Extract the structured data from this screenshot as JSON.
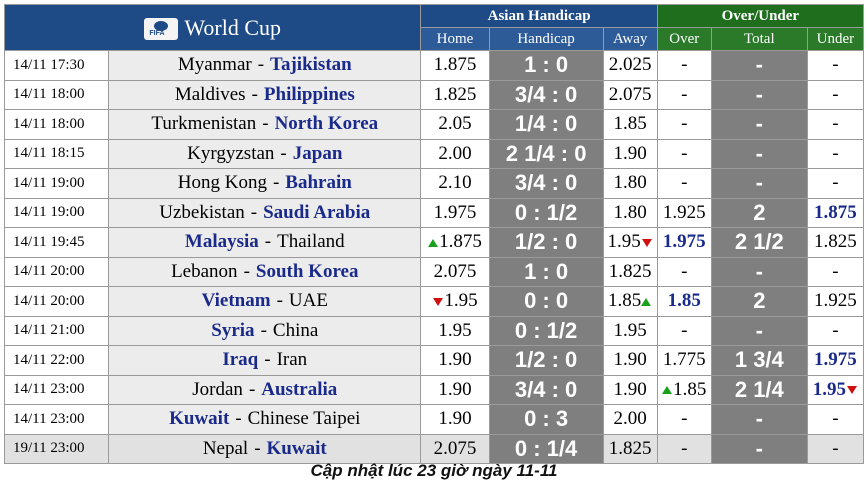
{
  "header": {
    "title": "World Cup",
    "asian_handicap": "Asian Handicap",
    "over_under": "Over/Under",
    "cols": {
      "home": "Home",
      "handicap": "Handicap",
      "away": "Away",
      "over": "Over",
      "total": "Total",
      "under": "Under"
    }
  },
  "colors": {
    "header_blue": "#1e4a85",
    "header_green": "#1e6e1e",
    "handicap_gray": "#7f7f7f",
    "favorite_team": "#1a2a8a",
    "arrow_up": "#1aa01a",
    "arrow_down": "#d01010"
  },
  "rows": [
    {
      "time": "14/11 17:30",
      "home": "Myanmar",
      "away": "Tajikistan",
      "fav": "away",
      "h": "1.875",
      "hc": "1 : 0",
      "a": "2.025",
      "over": "-",
      "total": "-",
      "under": "-"
    },
    {
      "time": "14/11 18:00",
      "home": "Maldives",
      "away": "Philippines",
      "fav": "away",
      "h": "1.825",
      "hc": "3/4 : 0",
      "a": "2.075",
      "over": "-",
      "total": "-",
      "under": "-"
    },
    {
      "time": "14/11 18:00",
      "home": "Turkmenistan",
      "away": "North Korea",
      "fav": "away",
      "h": "2.05",
      "hc": "1/4 : 0",
      "a": "1.85",
      "over": "-",
      "total": "-",
      "under": "-"
    },
    {
      "time": "14/11 18:15",
      "home": "Kyrgyzstan",
      "away": "Japan",
      "fav": "away",
      "h": "2.00",
      "hc": "2 1/4 : 0",
      "a": "1.90",
      "over": "-",
      "total": "-",
      "under": "-"
    },
    {
      "time": "14/11 19:00",
      "home": "Hong Kong",
      "away": "Bahrain",
      "fav": "away",
      "h": "2.10",
      "hc": "3/4 : 0",
      "a": "1.80",
      "over": "-",
      "total": "-",
      "under": "-"
    },
    {
      "time": "14/11 19:00",
      "home": "Uzbekistan",
      "away": "Saudi Arabia",
      "fav": "away",
      "h": "1.975",
      "hc": "0 : 1/2",
      "a": "1.80",
      "over": "1.925",
      "total": "2",
      "under": "1.875"
    },
    {
      "time": "14/11 19:45",
      "home": "Malaysia",
      "away": "Thailand",
      "fav": "home",
      "h": "1.875",
      "hc": "1/2 : 0",
      "a": "1.95",
      "over": "1.975",
      "total": "2 1/2",
      "under": "1.825"
    },
    {
      "time": "14/11 20:00",
      "home": "Lebanon",
      "away": "South Korea",
      "fav": "away",
      "h": "2.075",
      "hc": "1 : 0",
      "a": "1.825",
      "over": "-",
      "total": "-",
      "under": "-"
    },
    {
      "time": "14/11 20:00",
      "home": "Vietnam",
      "away": "UAE",
      "fav": "home",
      "h": "1.95",
      "hc": "0 : 0",
      "a": "1.85",
      "over": "1.85",
      "total": "2",
      "under": "1.925"
    },
    {
      "time": "14/11 21:00",
      "home": "Syria",
      "away": "China",
      "fav": "home",
      "h": "1.95",
      "hc": "0 : 1/2",
      "a": "1.95",
      "over": "-",
      "total": "-",
      "under": "-"
    },
    {
      "time": "14/11 22:00",
      "home": "Iraq",
      "away": "Iran",
      "fav": "home",
      "h": "1.90",
      "hc": "1/2 : 0",
      "a": "1.90",
      "over": "1.775",
      "total": "1 3/4",
      "under": "1.975"
    },
    {
      "time": "14/11 23:00",
      "home": "Jordan",
      "away": "Australia",
      "fav": "away",
      "h": "1.90",
      "hc": "3/4 : 0",
      "a": "1.90",
      "over": "1.85",
      "total": "2 1/4",
      "under": "1.95"
    },
    {
      "time": "14/11 23:00",
      "home": "Kuwait",
      "away": "Chinese Taipei",
      "fav": "home",
      "h": "1.90",
      "hc": "0 : 3",
      "a": "2.00",
      "over": "-",
      "total": "-",
      "under": "-"
    },
    {
      "time": "19/11 23:00",
      "home": "Nepal",
      "away": "Kuwait",
      "fav": "away",
      "h": "2.075",
      "hc": "0 : 1/4",
      "a": "1.825",
      "over": "-",
      "total": "-",
      "under": "-"
    }
  ],
  "separator": "-",
  "footer": "Cập nhật lúc 23 giờ ngày 11-11"
}
